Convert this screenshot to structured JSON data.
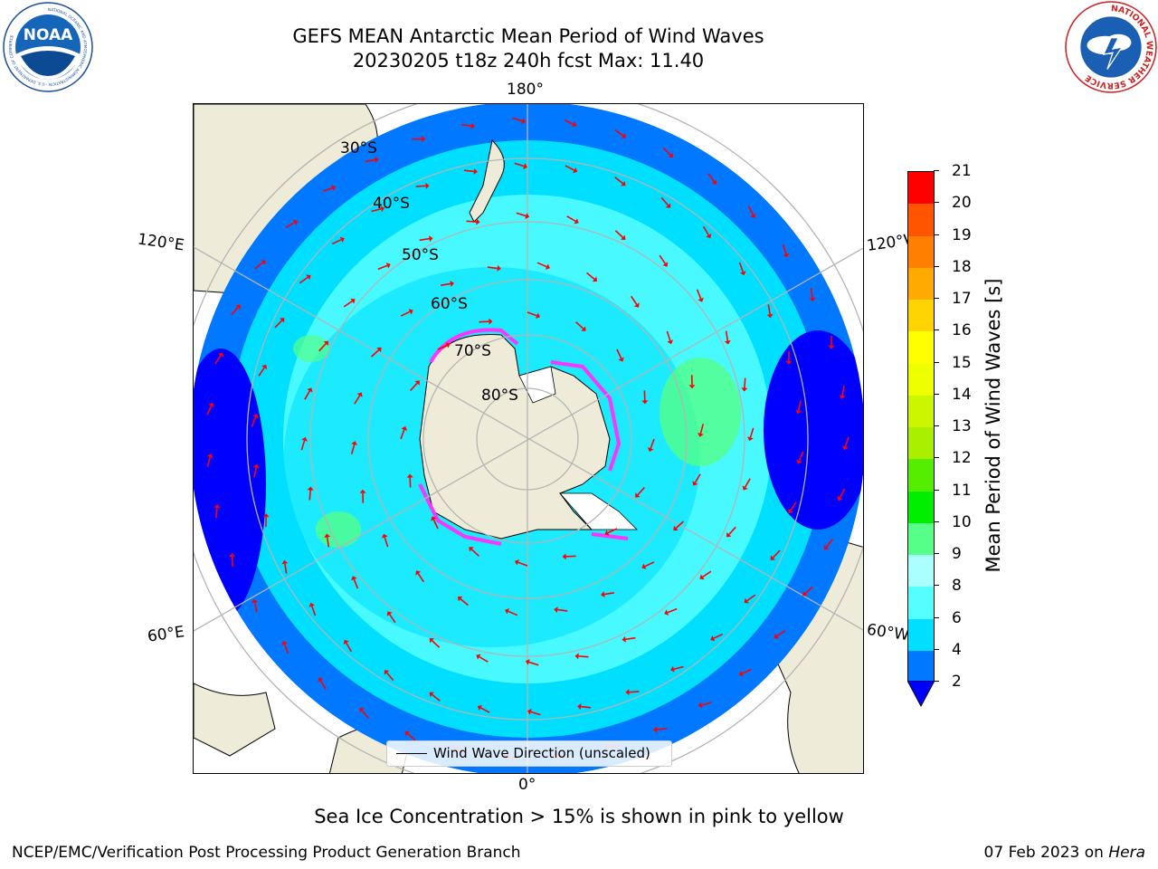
{
  "header": {
    "title_line1": "GEFS MEAN Antarctic Mean Period of Wind Waves",
    "title_line2": "20230205 t18z 240h fcst   Max: 11.40"
  },
  "logos": {
    "noaa": {
      "icon": "noaa-logo",
      "text": "NOAA",
      "ring_text": "NATIONAL OCEANIC AND ATMOSPHERIC ADMINISTRATION · U.S. DEPARTMENT OF COMMERCE"
    },
    "nws": {
      "icon": "national-weather-service-logo",
      "ring_text": "NATIONAL WEATHER SERVICE"
    }
  },
  "map": {
    "projection": "south-polar-stereographic",
    "longitude_labels": {
      "top": "180°",
      "bottom": "0°",
      "upper_left": "120°E",
      "upper_right": "120°W",
      "lower_left": "60°E",
      "lower_right": "60°W"
    },
    "latitude_labels": [
      "30°S",
      "40°S",
      "50°S",
      "60°S",
      "70°S",
      "80°S"
    ],
    "colors": {
      "land": "#eeecd9",
      "ice_land": "#ffffff",
      "grid": "#b4b4b4",
      "arrows": "#ff0000",
      "sea_ice": "#ff33ff"
    }
  },
  "colorbar": {
    "label": "Mean Period of Wind Waves [s]",
    "ticks": [
      "2",
      "4",
      "6",
      "8",
      "9",
      "10",
      "11",
      "12",
      "13",
      "14",
      "15",
      "16",
      "17",
      "18",
      "19",
      "20",
      "21"
    ],
    "colors": [
      "#0078ff",
      "#00dfff",
      "#55ffff",
      "#aaffff",
      "#55ff88",
      "#00ee00",
      "#55ee00",
      "#aaee00",
      "#ccf500",
      "#eeff00",
      "#ffff00",
      "#ffd400",
      "#ffaa00",
      "#ff8000",
      "#ff5500",
      "#ff0000"
    ],
    "under_color": "#0000ff"
  },
  "legend": {
    "label": "Wind Wave Direction (unscaled)"
  },
  "note": "Sea Ice Concentration > 15% is shown in pink to yellow",
  "footer": {
    "left": "NCEP/EMC/Verification Post Processing Product Generation Branch",
    "date": "07 Feb 2023 on",
    "machine": "Hera"
  }
}
